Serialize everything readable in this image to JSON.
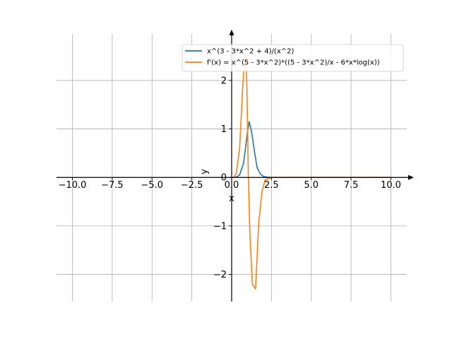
{
  "chart_data": {
    "type": "line",
    "title": "",
    "xlabel": "x",
    "ylabel": "y",
    "xlim": [
      -11,
      11
    ],
    "ylim": [
      -2.56,
      2.96
    ],
    "grid": true,
    "legend_position": "top-right",
    "x_ticks": [
      -10.0,
      -7.5,
      -5.0,
      -2.5,
      0.0,
      2.5,
      5.0,
      7.5,
      10.0
    ],
    "x_tick_labels": [
      "−10.0",
      "−7.5",
      "−5.0",
      "−2.5",
      "0.0",
      "2.5",
      "5.0",
      "7.5",
      "10.0"
    ],
    "y_ticks": [
      -2,
      -1,
      0,
      1,
      2
    ],
    "y_tick_labels": [
      "−2",
      "−1",
      "0",
      "1",
      "2"
    ],
    "series": [
      {
        "name": "x^(3 - 3*x^2 + 4)/(x^2)",
        "color": "#1f77b4",
        "x": [
          0.0,
          0.25,
          0.5,
          0.75,
          1.0,
          1.1,
          1.25,
          1.45,
          1.6,
          1.8,
          2.0,
          2.25,
          2.5,
          3.0,
          4.0,
          5.0,
          7.5,
          10.0
        ],
        "y": [
          0.0,
          0.0,
          0.05,
          0.3,
          0.95,
          1.15,
          0.95,
          0.5,
          0.2,
          0.07,
          0.02,
          0.005,
          0.0,
          0.0,
          0.0,
          0.0,
          0.0,
          0.0
        ]
      },
      {
        "name": "f'(x) = x^(5 - 3*x^2)*((5 - 3*x^2)/x - 6*x*log(x))",
        "color": "#ff7f0e",
        "x": [
          0.0,
          0.15,
          0.3,
          0.5,
          0.7,
          0.85,
          0.95,
          1.05,
          1.15,
          1.3,
          1.5,
          1.7,
          1.9,
          2.1,
          2.5,
          3.0,
          4.0,
          5.0,
          7.5,
          10.0
        ],
        "y": [
          0.0,
          0.0,
          0.1,
          0.6,
          1.9,
          2.55,
          2.0,
          0.0,
          -1.2,
          -2.2,
          -2.3,
          -0.95,
          -0.3,
          -0.05,
          0.0,
          0.0,
          0.0,
          0.0,
          0.0,
          0.0
        ]
      }
    ]
  }
}
